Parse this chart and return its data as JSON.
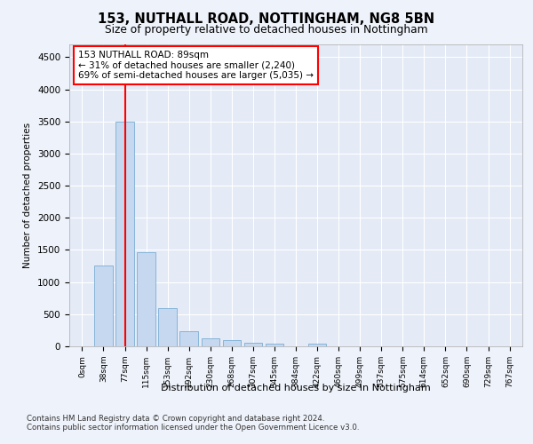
{
  "title1": "153, NUTHALL ROAD, NOTTINGHAM, NG8 5BN",
  "title2": "Size of property relative to detached houses in Nottingham",
  "xlabel": "Distribution of detached houses by size in Nottingham",
  "ylabel": "Number of detached properties",
  "bar_labels": [
    "0sqm",
    "38sqm",
    "77sqm",
    "115sqm",
    "153sqm",
    "192sqm",
    "230sqm",
    "268sqm",
    "307sqm",
    "345sqm",
    "384sqm",
    "422sqm",
    "460sqm",
    "499sqm",
    "537sqm",
    "575sqm",
    "614sqm",
    "652sqm",
    "690sqm",
    "729sqm",
    "767sqm"
  ],
  "bar_values": [
    5,
    1260,
    3500,
    1470,
    590,
    230,
    120,
    90,
    55,
    40,
    5,
    40,
    0,
    0,
    0,
    0,
    0,
    0,
    0,
    0,
    0
  ],
  "bar_color": "#c5d8f0",
  "bar_edge_color": "#7aadd4",
  "vline_x": 2,
  "vline_color": "red",
  "annotation_text": "153 NUTHALL ROAD: 89sqm\n← 31% of detached houses are smaller (2,240)\n69% of semi-detached houses are larger (5,035) →",
  "annotation_box_color": "white",
  "annotation_box_edge": "red",
  "ylim": [
    0,
    4700
  ],
  "yticks": [
    0,
    500,
    1000,
    1500,
    2000,
    2500,
    3000,
    3500,
    4000,
    4500
  ],
  "footer1": "Contains HM Land Registry data © Crown copyright and database right 2024.",
  "footer2": "Contains public sector information licensed under the Open Government Licence v3.0.",
  "bg_color": "#eef2fa",
  "plot_bg": "#e4eaf6"
}
